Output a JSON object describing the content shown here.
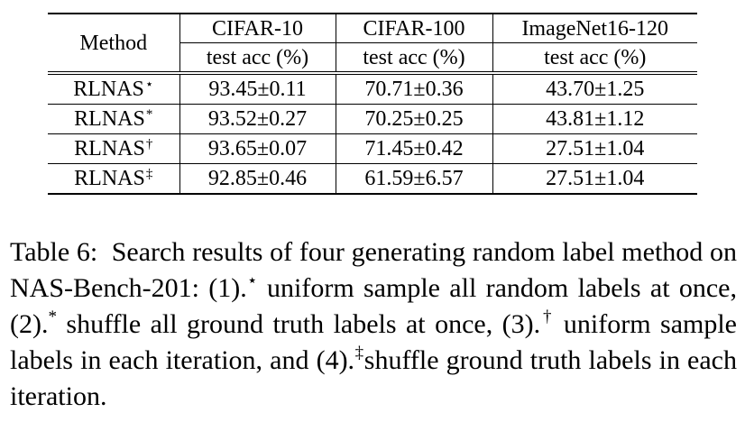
{
  "table": {
    "method_header": "Method",
    "datasets": [
      "CIFAR-10",
      "CIFAR-100",
      "ImageNet16-120"
    ],
    "metric": "test acc (%)",
    "rows": [
      {
        "method": "RLNAS",
        "mark": "⋆",
        "cifar10": "93.45±0.11",
        "cifar100": "70.71±0.36",
        "imagenet": "43.70±1.25",
        "bold": []
      },
      {
        "method": "RLNAS",
        "mark": "*",
        "cifar10": "93.52±0.27",
        "cifar100": "70.25±0.25",
        "imagenet": "43.81±1.12",
        "bold": [
          "imagenet"
        ]
      },
      {
        "method": "RLNAS",
        "mark": "†",
        "cifar10": "93.65±0.07",
        "cifar100": "71.45±0.42",
        "imagenet": "27.51±1.04",
        "bold": [
          "cifar10",
          "cifar100"
        ]
      },
      {
        "method": "RLNAS",
        "mark": "‡",
        "cifar10": "92.85±0.46",
        "cifar100": "61.59±6.57",
        "imagenet": "27.51±1.04",
        "bold": []
      }
    ]
  },
  "caption": {
    "label": "Table 6:",
    "p1": "Search results of four generating random label method on NAS-Bench-201: (1).",
    "m1": "⋆",
    "p2": " uniform sample all random labels at once, (2).",
    "m2": "*",
    "p3": " shuffle all ground truth labels at once, (3).",
    "m3": "†",
    "p4": " uniform sample labels in each iteration, and (4).",
    "m4": "‡",
    "p5": "shuffle ground truth labels in each iteration."
  }
}
